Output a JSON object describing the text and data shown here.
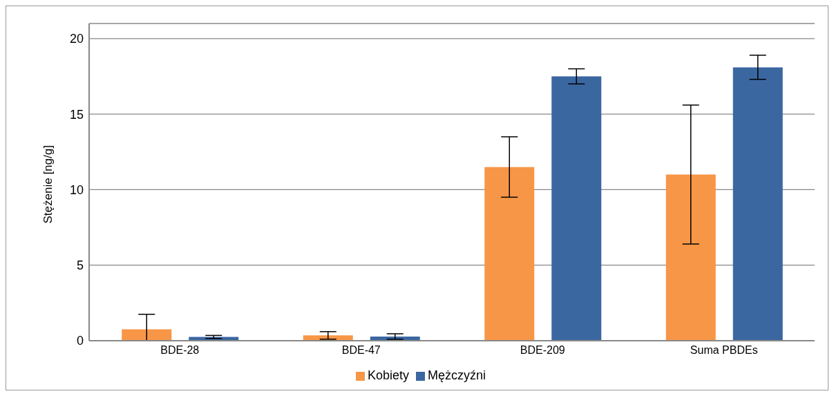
{
  "chart_data": {
    "type": "bar",
    "ylabel": "Stężenie [ng/g]",
    "categories": [
      "BDE-28",
      "BDE-47",
      "BDE-209",
      "Suma PBDEs"
    ],
    "series": [
      {
        "name": "Kobiety",
        "color": "#f79646",
        "values": [
          0.75,
          0.35,
          11.5,
          11.0
        ],
        "errors": [
          [
            0,
            1.75
          ],
          0.25,
          2.0,
          4.6
        ]
      },
      {
        "name": "Mężczyźni",
        "color": "#3b67a1",
        "values": [
          0.25,
          0.28,
          17.5,
          18.1
        ],
        "errors": [
          0.1,
          0.18,
          0.5,
          0.8
        ]
      }
    ],
    "ylim": [
      0,
      21
    ],
    "yticks": [
      0,
      5,
      10,
      15,
      20
    ],
    "grid": "y",
    "legend": "bottom"
  }
}
